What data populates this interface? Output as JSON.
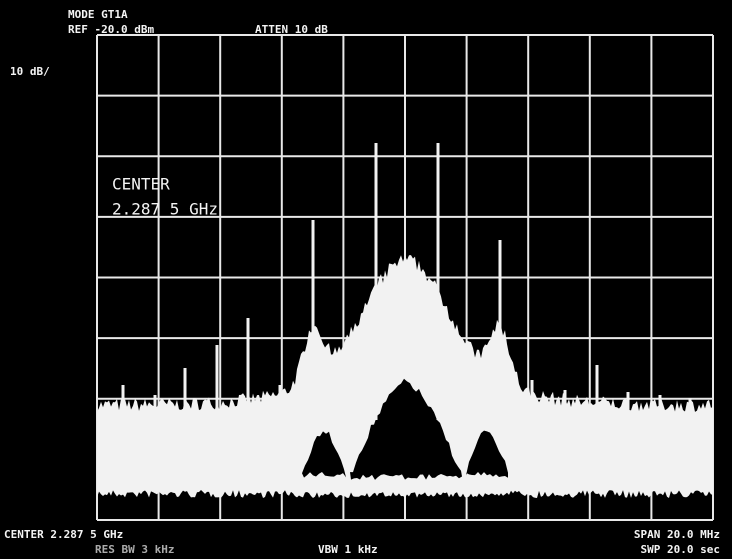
{
  "header": {
    "mode": "MODE GT1A",
    "ref": "REF -20.0 dBm",
    "atten": "ATTEN 10 dB"
  },
  "scale": "10 dB/",
  "center_label": "CENTER",
  "center_value": "2.287 5 GHz",
  "footer": {
    "center": "CENTER 2.287 5 GHz",
    "span": "SPAN 20.0 MHz",
    "res_bw": "RES BW 3 kHz",
    "vbw": "VBW 1 kHz",
    "sweep": "SWP 20.0 sec"
  }
}
